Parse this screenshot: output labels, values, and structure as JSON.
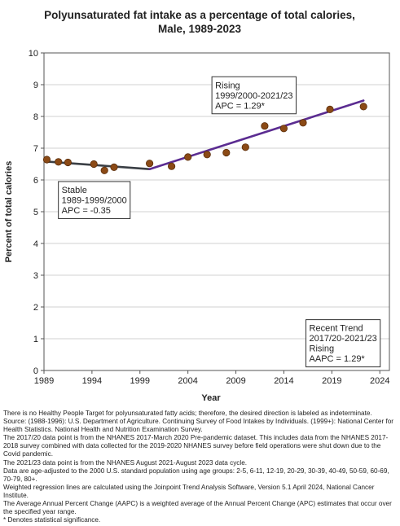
{
  "chart_data": {
    "type": "line",
    "title": "Polyunsaturated fat intake as a percentage of total calories,",
    "subtitle": "Male,  1989-2023",
    "xlabel": "Year",
    "ylabel": "Percent of total calories",
    "xlim": [
      1989,
      2025
    ],
    "ylim": [
      0,
      10
    ],
    "x_ticks": [
      1989,
      1994,
      1999,
      2004,
      2009,
      2014,
      2019,
      2024
    ],
    "y_ticks": [
      0,
      1,
      2,
      3,
      4,
      5,
      6,
      7,
      8,
      9,
      10
    ],
    "grid": true,
    "points": {
      "x": [
        1989.3,
        1990.5,
        1991.5,
        1994.2,
        1995.3,
        1996.3,
        2000.0,
        2002.3,
        2004.0,
        2006.0,
        2008.0,
        2010.0,
        2012.0,
        2014.0,
        2016.0,
        2018.8,
        2022.3
      ],
      "y": [
        6.64,
        6.57,
        6.55,
        6.5,
        6.3,
        6.4,
        6.52,
        6.43,
        6.72,
        6.8,
        6.86,
        7.03,
        7.7,
        7.62,
        7.8,
        8.22,
        8.31
      ]
    },
    "series": [
      {
        "segment": "stable",
        "color": "#3a3f45",
        "x": [
          1989.3,
          2000.0
        ],
        "y": [
          6.58,
          6.34
        ]
      },
      {
        "segment": "rising",
        "color": "#5b2c91",
        "x": [
          2000.0,
          2022.3
        ],
        "y": [
          6.34,
          8.5
        ]
      }
    ],
    "annotations": [
      {
        "x": 1990.5,
        "y": 5.95,
        "lines": [
          "Stable",
          "1989-1999/2000",
          "APC = -0.35"
        ]
      },
      {
        "x": 2006.5,
        "y": 9.25,
        "lines": [
          "Rising",
          "1999/2000-2021/23",
          "APC =  1.29*"
        ]
      },
      {
        "x": 2016.3,
        "y": 1.6,
        "lines": [
          "Recent Trend",
          "2017/20-2021/23",
          "Rising",
          "AAPC =  1.29*"
        ]
      }
    ],
    "colors": {
      "point": "#8b4a16",
      "point_edge": "#5a2e0c",
      "grid": "#d0d0d0"
    }
  },
  "notes": [
    "There is no Healthy People Target for polyunsaturated fatty acids; therefore, the desired direction is labeled as indeterminate.",
    "Source: (1988-1996): U.S. Department of Agriculture. Continuing Survey of Food Intakes by Individuals. (1999+): National Center for Health Statistics. National Health and Nutrition Examination Survey.",
    "The 2017/20 data point is from the NHANES 2017-March 2020 Pre-pandemic dataset. This includes data from the NHANES 2017-2018 survey combined with data collected for the 2019-2020 NHANES survey before field operations were shut down due to the Covid pandemic.",
    "The 2021/23 data point is from the NHANES August 2021-August 2023 data cycle.",
    "Data are age-adjusted to the 2000 U.S. standard population using age groups: 2-5, 6-11, 12-19, 20-29, 30-39, 40-49, 50-59, 60-69, 70-79, 80+.",
    "Weighted regression lines are calculated using the Joinpoint Trend Analysis Software, Version 5.1 April 2024, National Cancer Institute.",
    "The Average Annual Percent Change (AAPC) is a weighted average of the Annual Percent Change (APC) estimates that occur over the specified year range.",
    "* Denotes statistical significance."
  ]
}
